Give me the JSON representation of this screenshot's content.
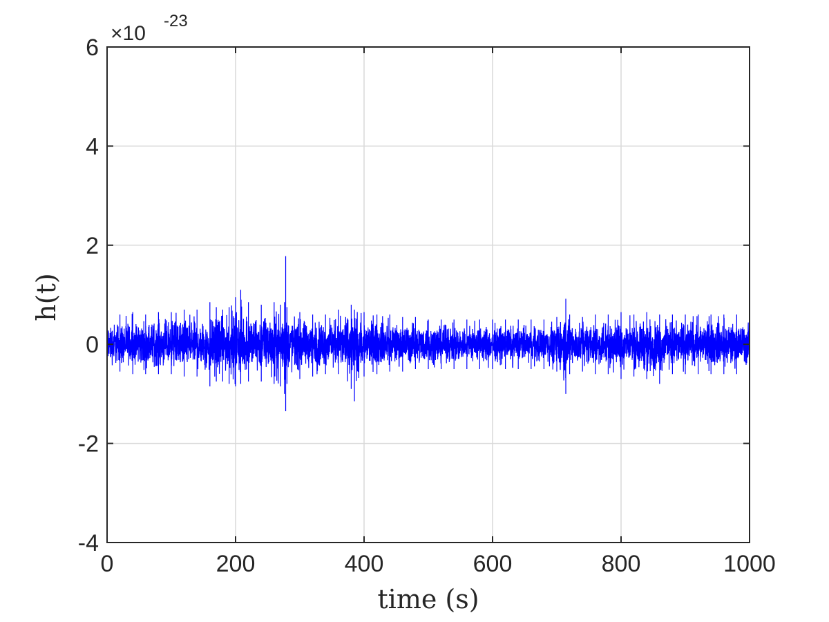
{
  "chart_data": {
    "type": "line",
    "title": "",
    "xlabel": "time (s)",
    "ylabel": "h(t)",
    "xlim": [
      0,
      1000
    ],
    "ylim": [
      -4,
      6
    ],
    "y_exponent_prefix": "×10",
    "y_exponent_power": "-23",
    "xticks": [
      0,
      200,
      400,
      600,
      800,
      1000
    ],
    "xtick_labels": [
      "0",
      "200",
      "400",
      "600",
      "800",
      "1000"
    ],
    "yticks": [
      -4,
      -2,
      0,
      2,
      4,
      6
    ],
    "ytick_labels": [
      "-4",
      "-2",
      "0",
      "2",
      "4",
      "6"
    ],
    "grid": true,
    "line_color": "#0000ff",
    "series": [
      {
        "x": [
          0,
          20,
          40,
          60,
          80,
          100,
          120,
          140,
          160,
          170,
          180,
          190,
          200,
          208,
          220,
          240,
          260,
          270,
          276,
          278,
          280,
          300,
          320,
          340,
          360,
          380,
          385,
          400,
          420,
          440,
          460,
          480,
          500,
          520,
          540,
          560,
          580,
          600,
          620,
          640,
          660,
          680,
          700,
          714,
          720,
          740,
          760,
          780,
          800,
          820,
          840,
          860,
          880,
          900,
          920,
          940,
          960,
          980,
          1000
        ],
        "envelope_upper": [
          0.6,
          0.6,
          0.65,
          0.6,
          0.65,
          0.65,
          0.7,
          0.7,
          0.85,
          0.75,
          0.7,
          0.75,
          0.95,
          1.1,
          0.85,
          0.8,
          0.85,
          0.8,
          0.85,
          1.78,
          0.75,
          0.65,
          0.6,
          0.6,
          0.7,
          0.8,
          0.7,
          0.65,
          0.6,
          0.6,
          0.55,
          0.55,
          0.5,
          0.5,
          0.5,
          0.5,
          0.5,
          0.5,
          0.5,
          0.5,
          0.5,
          0.5,
          0.55,
          0.92,
          0.6,
          0.55,
          0.6,
          0.6,
          0.65,
          0.6,
          0.65,
          0.6,
          0.6,
          0.6,
          0.6,
          0.6,
          0.6,
          0.6,
          0.55
        ],
        "envelope_lower": [
          -0.55,
          -0.55,
          -0.6,
          -0.6,
          -0.6,
          -0.6,
          -0.65,
          -0.65,
          -0.85,
          -0.75,
          -0.75,
          -0.8,
          -0.85,
          -0.8,
          -0.75,
          -0.75,
          -0.8,
          -0.85,
          -1.0,
          -1.35,
          -0.8,
          -0.7,
          -0.65,
          -0.6,
          -0.6,
          -0.9,
          -1.15,
          -0.65,
          -0.6,
          -0.55,
          -0.55,
          -0.5,
          -0.5,
          -0.5,
          -0.5,
          -0.5,
          -0.5,
          -0.5,
          -0.5,
          -0.5,
          -0.5,
          -0.5,
          -0.55,
          -1.0,
          -0.6,
          -0.55,
          -0.6,
          -0.6,
          -0.7,
          -0.65,
          -0.7,
          -0.8,
          -0.6,
          -0.6,
          -0.6,
          -0.6,
          -0.6,
          -0.6,
          -0.55
        ]
      }
    ]
  }
}
